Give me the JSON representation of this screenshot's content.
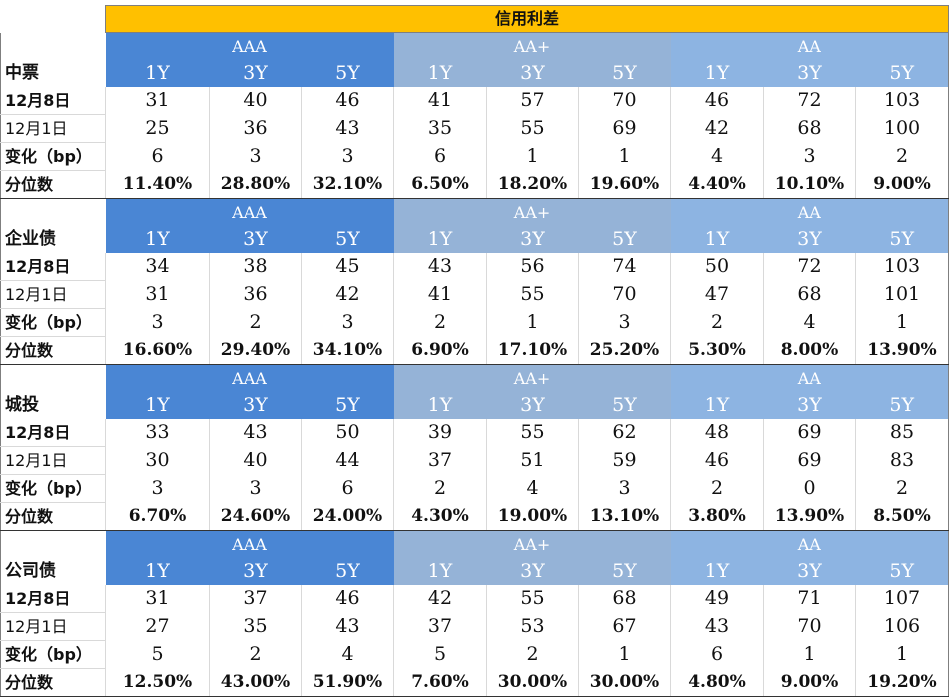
{
  "title": "信用利差",
  "ratings": [
    "AAA",
    "AA+",
    "AA"
  ],
  "tenors": [
    "1Y",
    "3Y",
    "5Y"
  ],
  "row_labels": {
    "current": "12月8日",
    "previous": "12月1日",
    "change": "变化（bp）",
    "percentile": "分位数"
  },
  "colors": {
    "title_bg": "#ffc000",
    "aaa_header": "#4a86d4",
    "aa_plus_header": "#95b3d7",
    "aa_header": "#8db4e2"
  },
  "sections": [
    {
      "name": "中票",
      "current": [
        "31",
        "40",
        "46",
        "41",
        "57",
        "70",
        "46",
        "72",
        "103"
      ],
      "previous": [
        "25",
        "36",
        "43",
        "35",
        "55",
        "69",
        "42",
        "68",
        "100"
      ],
      "change": [
        "6",
        "3",
        "3",
        "6",
        "1",
        "1",
        "4",
        "3",
        "2"
      ],
      "percentile": [
        "11.40%",
        "28.80%",
        "32.10%",
        "6.50%",
        "18.20%",
        "19.60%",
        "4.40%",
        "10.10%",
        "9.00%"
      ]
    },
    {
      "name": "企业债",
      "current": [
        "34",
        "38",
        "45",
        "43",
        "56",
        "74",
        "50",
        "72",
        "103"
      ],
      "previous": [
        "31",
        "36",
        "42",
        "41",
        "55",
        "70",
        "47",
        "68",
        "101"
      ],
      "change": [
        "3",
        "2",
        "3",
        "2",
        "1",
        "3",
        "2",
        "4",
        "1"
      ],
      "percentile": [
        "16.60%",
        "29.40%",
        "34.10%",
        "6.90%",
        "17.10%",
        "25.20%",
        "5.30%",
        "8.00%",
        "13.90%"
      ]
    },
    {
      "name": "城投",
      "current": [
        "33",
        "43",
        "50",
        "39",
        "55",
        "62",
        "48",
        "69",
        "85"
      ],
      "previous": [
        "30",
        "40",
        "44",
        "37",
        "51",
        "59",
        "46",
        "69",
        "83"
      ],
      "change": [
        "3",
        "3",
        "6",
        "2",
        "4",
        "3",
        "2",
        "0",
        "2"
      ],
      "percentile": [
        "6.70%",
        "24.60%",
        "24.00%",
        "4.30%",
        "19.00%",
        "13.10%",
        "3.80%",
        "13.90%",
        "8.50%"
      ]
    },
    {
      "name": "公司债",
      "current": [
        "31",
        "37",
        "46",
        "42",
        "55",
        "68",
        "49",
        "71",
        "107"
      ],
      "previous": [
        "27",
        "35",
        "43",
        "37",
        "53",
        "67",
        "43",
        "70",
        "106"
      ],
      "change": [
        "5",
        "2",
        "4",
        "5",
        "2",
        "1",
        "6",
        "1",
        "1"
      ],
      "percentile": [
        "12.50%",
        "43.00%",
        "51.90%",
        "7.60%",
        "30.00%",
        "30.00%",
        "4.80%",
        "9.00%",
        "19.20%"
      ]
    }
  ]
}
